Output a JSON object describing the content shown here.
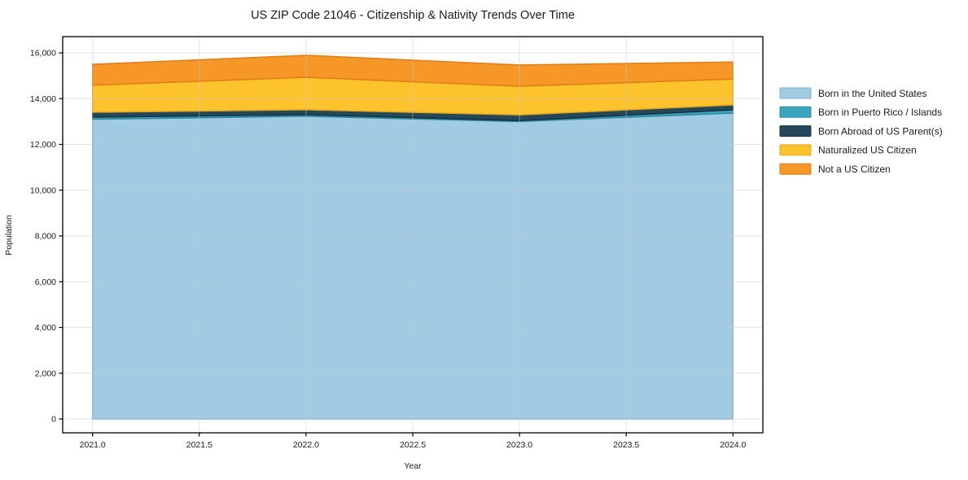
{
  "chart_data": {
    "type": "area",
    "stacked": true,
    "title": "US ZIP Code 21046 - Citizenship & Nativity Trends Over Time",
    "xlabel": "Year",
    "ylabel": "Population",
    "x": [
      2021,
      2022,
      2023,
      2024
    ],
    "series": [
      {
        "name": "Born in the United States",
        "values": [
          13100,
          13230,
          13000,
          13370
        ],
        "fill": "#A1CBE2",
        "edge": "#7EB1CC"
      },
      {
        "name": "Born in Puerto Rico / Islands",
        "values": [
          90,
          70,
          40,
          140
        ],
        "fill": "#3AA5BE",
        "edge": "#2C89A0"
      },
      {
        "name": "Born Abroad of US Parent(s)",
        "values": [
          215,
          215,
          250,
          215
        ],
        "fill": "#23485C",
        "edge": "#16303F"
      },
      {
        "name": "Naturalized US Citizen",
        "values": [
          1180,
          1420,
          1250,
          1130
        ],
        "fill": "#FCC32C",
        "edge": "#E5A81C"
      },
      {
        "name": "Not a US Citizen",
        "values": [
          915,
          960,
          930,
          745
        ],
        "fill": "#F79727",
        "edge": "#DD7E14"
      }
    ],
    "x_ticks": {
      "values": [
        2021.0,
        2021.5,
        2022.0,
        2022.5,
        2023.0,
        2023.5,
        2024.0
      ],
      "labels": [
        "2021.0",
        "2021.5",
        "2022.0",
        "2022.5",
        "2023.0",
        "2023.5",
        "2024.0"
      ]
    },
    "y_ticks": {
      "values": [
        0,
        2000,
        4000,
        6000,
        8000,
        10000,
        12000,
        14000,
        16000
      ],
      "labels": [
        "0",
        "2,000",
        "4,000",
        "6,000",
        "8,000",
        "10,000",
        "12,000",
        "14,000",
        "16,000"
      ]
    },
    "xlim": [
      2020.86,
      2024.14
    ],
    "ylim": [
      -604,
      16711
    ],
    "grid": true,
    "legend_position": "right-outside",
    "theme": {
      "background": "#ffffff",
      "grid_color": "#c8c8c8",
      "spine_color": "#000000",
      "text_color": "#1a1a1a"
    }
  }
}
